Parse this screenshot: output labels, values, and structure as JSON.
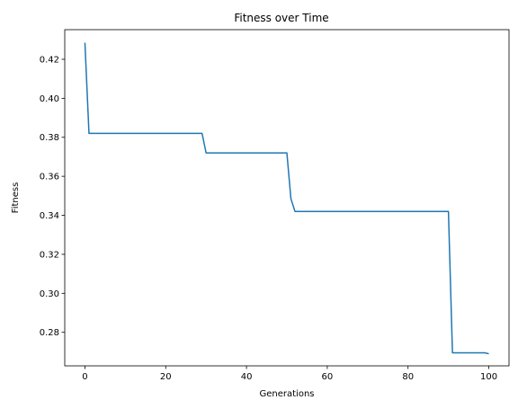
{
  "chart_data": {
    "type": "line",
    "title": "Fitness over Time",
    "xlabel": "Generations",
    "ylabel": "Fitness",
    "xlim": [
      -5,
      105
    ],
    "ylim": [
      0.2628,
      0.4352
    ],
    "xticks": [
      0,
      20,
      40,
      60,
      80,
      100
    ],
    "yticks": [
      0.28,
      0.3,
      0.32,
      0.34,
      0.36,
      0.38,
      0.4,
      0.42
    ],
    "grid": false,
    "series": [
      {
        "color": "#1f77b4",
        "points": [
          [
            0,
            0.4285
          ],
          [
            1,
            0.382
          ],
          [
            29,
            0.382
          ],
          [
            30,
            0.372
          ],
          [
            50,
            0.372
          ],
          [
            51,
            0.3485
          ],
          [
            52,
            0.342
          ],
          [
            90,
            0.342
          ],
          [
            91,
            0.2695
          ],
          [
            99,
            0.2695
          ],
          [
            100,
            0.269
          ]
        ]
      }
    ]
  }
}
